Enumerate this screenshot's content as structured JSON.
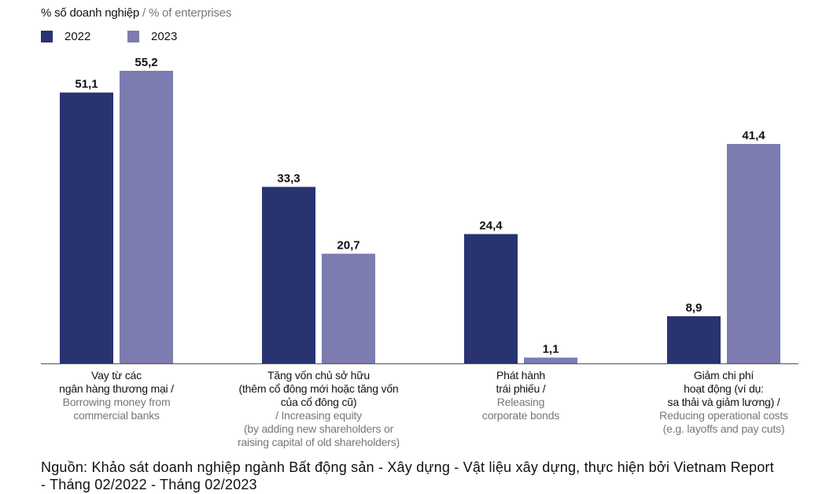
{
  "unit_label": {
    "vi": "% số doanh nghiệp",
    "en": "/ % of enterprises"
  },
  "legend": [
    {
      "label": "2022",
      "color": "#283370"
    },
    {
      "label": "2023",
      "color": "#7d7cb0"
    }
  ],
  "chart_data": {
    "type": "bar",
    "title": "",
    "ylabel": "% số doanh nghiệp / % of enterprises",
    "xlabel": "",
    "ylim": [
      0,
      60
    ],
    "grid": false,
    "legend_position": "top-left",
    "categories": [
      "Vay từ các ngân hàng thương mại / Borrowing money from commercial banks",
      "Tăng vốn chủ sở hữu (thêm cổ đông mới hoặc tăng vốn của cổ đông cũ) / Increasing equity (by adding new shareholders or raising capital of old shareholders)",
      "Phát hành trái phiếu / Releasing corporate bonds",
      "Giảm chi phí hoạt động (ví dụ: sa thải và giảm lương) / Reducing operational costs (e.g. layoffs and pay cuts)"
    ],
    "series": [
      {
        "name": "2022",
        "values": [
          51.1,
          33.3,
          24.4,
          8.9
        ],
        "labels": [
          "51,1",
          "33,3",
          "24,4",
          "8,9"
        ],
        "color": "#283370"
      },
      {
        "name": "2023",
        "values": [
          55.2,
          20.7,
          1.1,
          41.4
        ],
        "labels": [
          "55,2",
          "20,7",
          "1,1",
          "41,4"
        ],
        "color": "#7d7cb0"
      }
    ]
  },
  "category_labels": [
    {
      "vi": [
        "Vay từ các",
        "ngân hàng thương mại /"
      ],
      "en": [
        "Borrowing money from",
        "commercial banks"
      ]
    },
    {
      "vi": [
        "Tăng vốn chủ sở hữu",
        "(thêm cổ đông mới hoặc tăng vốn",
        "của cổ đông cũ)"
      ],
      "en": [
        "/ Increasing equity",
        "(by adding new shareholders or",
        "raising capital of old shareholders)"
      ]
    },
    {
      "vi": [
        "Phát hành",
        "trái phiếu /"
      ],
      "en": [
        "Releasing",
        "corporate bonds"
      ]
    },
    {
      "vi": [
        "Giảm chi phí",
        "hoạt động (ví dụ:",
        "sa thải và giảm lương) /"
      ],
      "en": [
        "Reducing operational costs",
        "(e.g. layoffs and pay cuts)"
      ]
    }
  ],
  "source": "Nguồn: Khảo sát doanh nghiệp ngành Bất động sản - Xây dựng - Vật liệu xây dựng, thực hiện bởi Vietnam Report - Tháng 02/2022 - Tháng 02/2023"
}
